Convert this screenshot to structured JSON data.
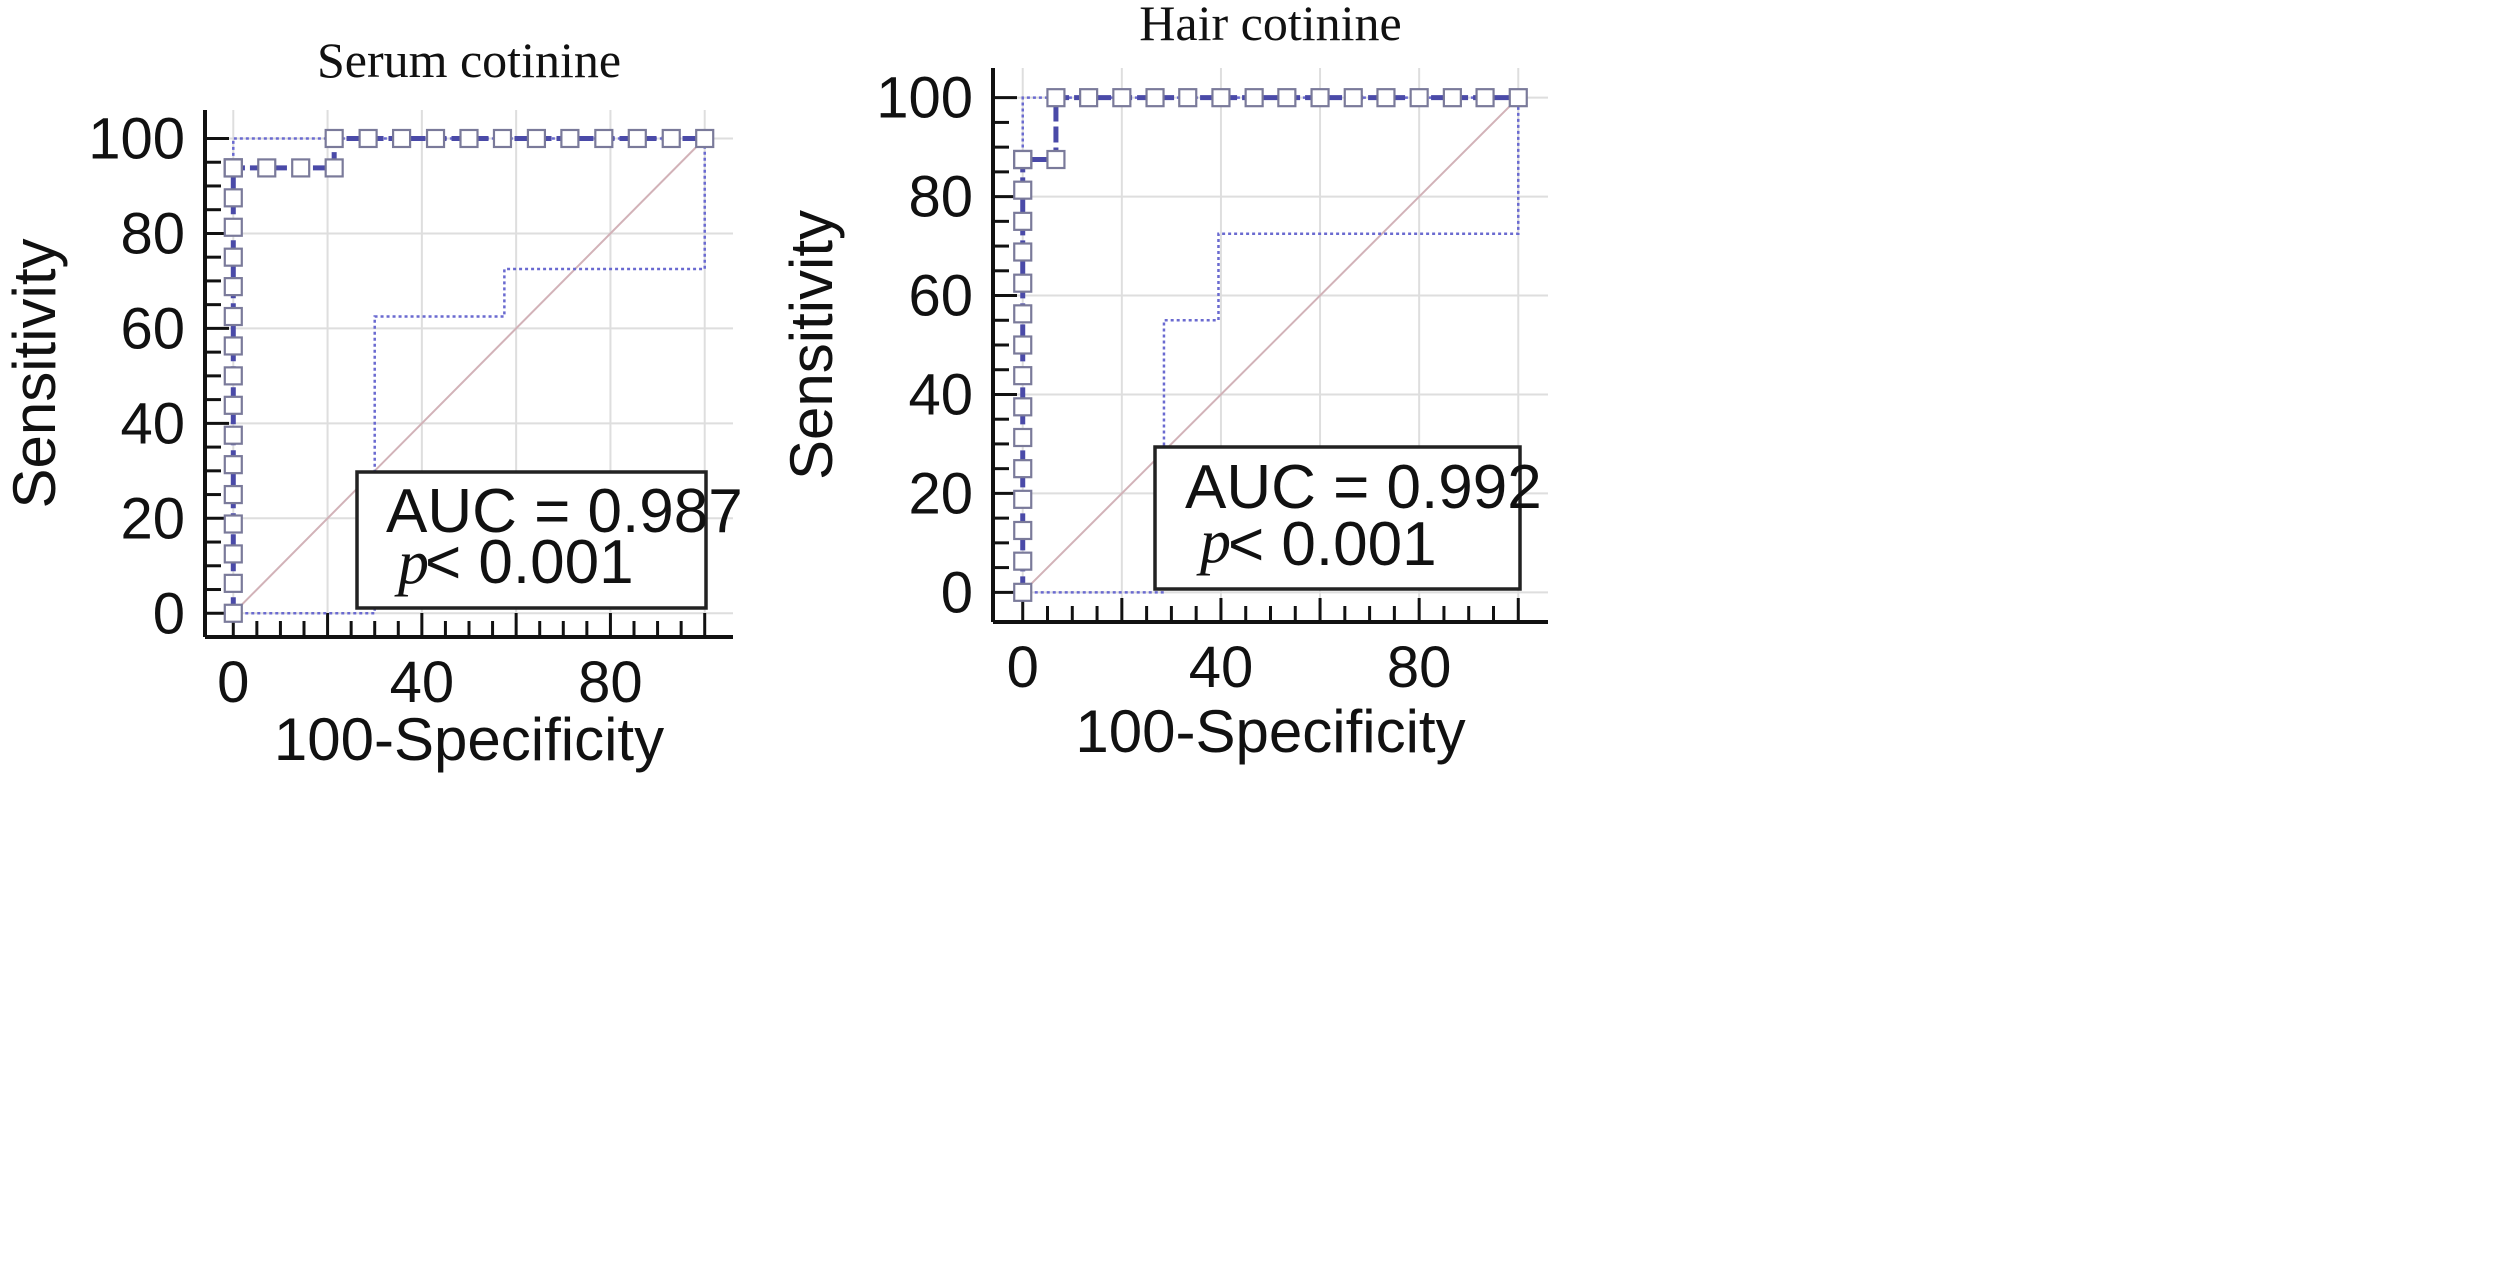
{
  "chart_data": [
    {
      "type": "line",
      "title": "Serum cotinine",
      "xlabel": "100-Specificity",
      "ylabel": "Sensitivity",
      "xlim": [
        -6,
        106
      ],
      "ylim": [
        -5,
        106
      ],
      "xticks": [
        0,
        40,
        80
      ],
      "yticks": [
        0,
        20,
        40,
        60,
        80,
        100
      ],
      "grid": true,
      "series": [
        {
          "name": "ROC curve",
          "x": [
            0,
            0,
            0,
            0,
            0,
            0,
            0,
            0,
            0,
            0,
            0,
            0,
            0,
            0,
            0,
            0,
            0,
            0,
            0,
            7.1,
            14.3,
            21.4,
            21.4,
            28.6,
            35.7,
            42.9,
            50,
            57.1,
            64.3,
            71.4,
            78.6,
            85.7,
            92.9,
            100
          ],
          "y": [
            0,
            6.3,
            12.5,
            18.8,
            25,
            31.3,
            37.5,
            43.8,
            50,
            56.3,
            62.5,
            68.8,
            75,
            81.3,
            87.5,
            93.8,
            93.8,
            93.8,
            93.8,
            93.8,
            93.8,
            93.8,
            100,
            100,
            100,
            100,
            100,
            100,
            100,
            100,
            100,
            100,
            100,
            100
          ]
        },
        {
          "name": "Upper confidence bound",
          "x": [
            0,
            0,
            100,
            100
          ],
          "y": [
            93.8,
            100,
            100,
            100
          ]
        },
        {
          "name": "Lower confidence bound",
          "x": [
            0,
            30,
            30,
            57.5,
            57.5,
            100,
            100
          ],
          "y": [
            0,
            0,
            62.5,
            62.5,
            72.5,
            72.5,
            100
          ]
        },
        {
          "name": "Reference line",
          "x": [
            0,
            100
          ],
          "y": [
            0,
            100
          ]
        }
      ],
      "annotations": [
        "AUC = 0.987",
        "p",
        "< 0.001"
      ]
    },
    {
      "type": "line",
      "title": "Hair cotinine",
      "xlabel": "100-Specificity",
      "ylabel": "Sensitivity",
      "xlim": [
        -6,
        106
      ],
      "ylim": [
        -6,
        106
      ],
      "xticks": [
        0,
        40,
        80
      ],
      "yticks": [
        0,
        20,
        40,
        60,
        80,
        100
      ],
      "grid": true,
      "series": [
        {
          "name": "ROC curve",
          "x": [
            0,
            0,
            0,
            0,
            0,
            0,
            0,
            0,
            0,
            0,
            0,
            0,
            0,
            0,
            0,
            0,
            0,
            6.7,
            6.7,
            13.3,
            20,
            26.7,
            33.3,
            40,
            46.7,
            53.3,
            60,
            66.7,
            73.3,
            80,
            86.7,
            93.3,
            100
          ],
          "y": [
            0,
            6.3,
            12.5,
            18.8,
            25,
            31.3,
            37.5,
            43.8,
            50,
            56.3,
            62.5,
            68.8,
            75,
            81.3,
            87.5,
            87.5,
            87.5,
            87.5,
            100,
            100,
            100,
            100,
            100,
            100,
            100,
            100,
            100,
            100,
            100,
            100,
            100,
            100,
            100
          ]
        },
        {
          "name": "Upper confidence bound",
          "x": [
            0,
            0,
            100,
            100
          ],
          "y": [
            87.5,
            100,
            100,
            100
          ]
        },
        {
          "name": "Lower confidence bound",
          "x": [
            0,
            28.5,
            28.5,
            39.5,
            39.5,
            100,
            100
          ],
          "y": [
            0,
            0,
            55,
            55,
            72.5,
            72.5,
            100
          ]
        },
        {
          "name": "Reference line",
          "x": [
            0,
            100
          ],
          "y": [
            0,
            100
          ]
        }
      ],
      "annotations": [
        "AUC = 0.992",
        "p",
        "< 0.001"
      ]
    }
  ],
  "colors": {
    "roc": "#4a4aa8",
    "ci": "#6a6ad0",
    "reference": "#d2b2b8",
    "grid": "#dedede",
    "axis": "#111111",
    "marker_fill": "#ffffff",
    "marker_stroke": "#7a7a9a"
  }
}
